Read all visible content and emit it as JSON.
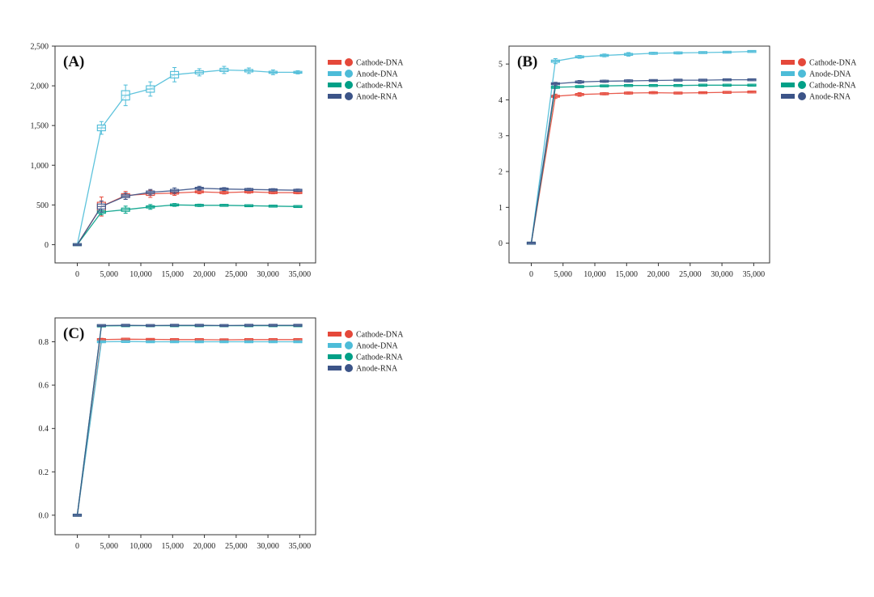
{
  "colors": {
    "Cathode-DNA": "#e5483a",
    "Anode-DNA": "#4dbcd8",
    "Cathode-RNA": "#00a087",
    "Anode-RNA": "#3c5488"
  },
  "chart_data": [
    {
      "type": "line",
      "panel_label": "(A)",
      "x": [
        0,
        3800,
        7600,
        11500,
        15300,
        19200,
        23100,
        27000,
        30800,
        34700
      ],
      "xticks": [
        0,
        5000,
        10000,
        15000,
        20000,
        25000,
        30000,
        35000
      ],
      "xtick_labels": [
        "0",
        "5,000",
        "10,000",
        "15,000",
        "20,000",
        "25,000",
        "30,000",
        "35,000"
      ],
      "ylim": [
        -230,
        2500
      ],
      "yticks": [
        0,
        500,
        1000,
        1500,
        2000,
        2500
      ],
      "ytick_labels": [
        "0",
        "500",
        "1,000",
        "1,500",
        "2,000",
        "2,500"
      ],
      "legend": [
        "Cathode-DNA",
        "Anode-DNA",
        "Cathode-RNA",
        "Anode-RNA"
      ],
      "series": [
        {
          "name": "Cathode-DNA",
          "values": [
            0,
            480,
            620,
            640,
            650,
            665,
            655,
            665,
            655,
            655
          ],
          "spread": [
            0,
            120,
            50,
            45,
            30,
            25,
            18,
            18,
            15,
            15
          ]
        },
        {
          "name": "Anode-DNA",
          "values": [
            0,
            1470,
            1880,
            1960,
            2140,
            2170,
            2200,
            2190,
            2170,
            2170
          ],
          "spread": [
            0,
            80,
            130,
            90,
            90,
            45,
            45,
            35,
            30,
            20
          ]
        },
        {
          "name": "Cathode-RNA",
          "values": [
            0,
            410,
            440,
            475,
            500,
            495,
            495,
            490,
            485,
            480
          ],
          "spread": [
            0,
            35,
            45,
            30,
            18,
            15,
            12,
            10,
            10,
            10
          ]
        },
        {
          "name": "Anode-RNA",
          "values": [
            0,
            480,
            610,
            660,
            680,
            710,
            700,
            695,
            690,
            685
          ],
          "spread": [
            0,
            70,
            40,
            35,
            35,
            25,
            18,
            15,
            15,
            15
          ]
        }
      ]
    },
    {
      "type": "line",
      "panel_label": "(B)",
      "x": [
        0,
        3800,
        7600,
        11500,
        15300,
        19200,
        23100,
        27000,
        30800,
        34700
      ],
      "xticks": [
        0,
        5000,
        10000,
        15000,
        20000,
        25000,
        30000,
        35000
      ],
      "xtick_labels": [
        "0",
        "5,000",
        "10,000",
        "15,000",
        "20,000",
        "25,000",
        "30,000",
        "35,000"
      ],
      "ylim": [
        -0.55,
        5.5
      ],
      "yticks": [
        0,
        1,
        2,
        3,
        4,
        5
      ],
      "ytick_labels": [
        "0",
        "1",
        "2",
        "3",
        "4",
        "5"
      ],
      "legend": [
        "Cathode-DNA",
        "Anode-DNA",
        "Cathode-RNA",
        "Anode-RNA"
      ],
      "series": [
        {
          "name": "Cathode-DNA",
          "values": [
            0,
            4.1,
            4.15,
            4.17,
            4.19,
            4.2,
            4.19,
            4.2,
            4.21,
            4.22
          ],
          "spread": [
            0,
            0.06,
            0.05,
            0.03,
            0.03,
            0.03,
            0.02,
            0.02,
            0.02,
            0.02
          ]
        },
        {
          "name": "Anode-DNA",
          "values": [
            0,
            5.08,
            5.2,
            5.24,
            5.27,
            5.3,
            5.31,
            5.32,
            5.33,
            5.35
          ],
          "spread": [
            0,
            0.07,
            0.04,
            0.04,
            0.05,
            0.03,
            0.03,
            0.02,
            0.02,
            0.02
          ]
        },
        {
          "name": "Cathode-RNA",
          "values": [
            0,
            4.35,
            4.37,
            4.39,
            4.4,
            4.4,
            4.4,
            4.41,
            4.41,
            4.41
          ],
          "spread": [
            0,
            0.03,
            0.02,
            0.02,
            0.02,
            0.02,
            0.02,
            0.02,
            0.02,
            0.02
          ]
        },
        {
          "name": "Anode-RNA",
          "values": [
            0,
            4.45,
            4.5,
            4.52,
            4.53,
            4.54,
            4.55,
            4.55,
            4.56,
            4.56
          ],
          "spread": [
            0,
            0.04,
            0.04,
            0.03,
            0.03,
            0.02,
            0.02,
            0.02,
            0.02,
            0.02
          ]
        }
      ]
    },
    {
      "type": "line",
      "panel_label": "(C)",
      "x": [
        0,
        3800,
        7600,
        11500,
        15300,
        19200,
        23100,
        27000,
        30800,
        34700
      ],
      "xticks": [
        0,
        5000,
        10000,
        15000,
        20000,
        25000,
        30000,
        35000
      ],
      "xtick_labels": [
        "0",
        "5,000",
        "10,000",
        "15,000",
        "20,000",
        "25,000",
        "30,000",
        "35,000"
      ],
      "ylim": [
        -0.09,
        0.91
      ],
      "yticks": [
        0.0,
        0.2,
        0.4,
        0.6,
        0.8
      ],
      "ytick_labels": [
        "0.0",
        "0.2",
        "0.4",
        "0.6",
        "0.8"
      ],
      "legend": [
        "Cathode-DNA",
        "Anode-DNA",
        "Cathode-RNA",
        "Anode-RNA"
      ],
      "series": [
        {
          "name": "Cathode-DNA",
          "values": [
            0,
            0.81,
            0.812,
            0.811,
            0.81,
            0.81,
            0.809,
            0.81,
            0.81,
            0.81
          ],
          "spread": [
            0,
            0.006,
            0.004,
            0.003,
            0.003,
            0.002,
            0.002,
            0.002,
            0.002,
            0.002
          ]
        },
        {
          "name": "Anode-DNA",
          "values": [
            0,
            0.8,
            0.801,
            0.8,
            0.8,
            0.8,
            0.8,
            0.8,
            0.8,
            0.8
          ],
          "spread": [
            0,
            0.004,
            0.003,
            0.003,
            0.003,
            0.002,
            0.002,
            0.002,
            0.002,
            0.002
          ]
        },
        {
          "name": "Cathode-RNA",
          "values": [
            0,
            0.873,
            0.874,
            0.874,
            0.874,
            0.874,
            0.874,
            0.874,
            0.874,
            0.874
          ],
          "spread": [
            0,
            0.002,
            0.002,
            0.002,
            0.002,
            0.002,
            0.002,
            0.002,
            0.002,
            0.002
          ]
        },
        {
          "name": "Anode-RNA",
          "values": [
            0,
            0.875,
            0.876,
            0.875,
            0.876,
            0.876,
            0.875,
            0.876,
            0.876,
            0.876
          ],
          "spread": [
            0,
            0.003,
            0.003,
            0.002,
            0.002,
            0.002,
            0.002,
            0.002,
            0.002,
            0.002
          ]
        }
      ]
    }
  ]
}
